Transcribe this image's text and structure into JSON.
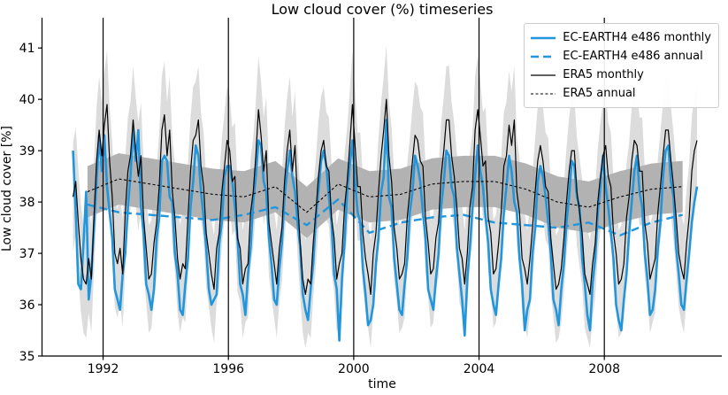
{
  "chart_data": {
    "type": "line",
    "title": "Low cloud cover (%) timeseries",
    "xlabel": "time",
    "ylabel": "Low cloud cover [%]",
    "xlim": [
      1990.05,
      2011.75
    ],
    "ylim": [
      35,
      41.59
    ],
    "xticks": [
      1992,
      1996,
      2000,
      2004,
      2008
    ],
    "yticks": [
      35,
      36,
      37,
      38,
      39,
      40,
      41
    ],
    "vertical_lines": {
      "years": [
        1992,
        1996,
        2000,
        2004,
        2008
      ],
      "color": "#000000",
      "width": 1.2
    },
    "grid": false,
    "plot_background": "#ffffff",
    "years": [
      1991,
      1992,
      1993,
      1994,
      1995,
      1996,
      1997,
      1998,
      1999,
      2000,
      2001,
      2002,
      2003,
      2004,
      2005,
      2006,
      2007,
      2008,
      2009,
      2010
    ],
    "series": [
      {
        "name": "EC-EARTH4 e486 monthly",
        "cadence": "monthly",
        "color": "#2196dc",
        "width": 2.6,
        "dash": "",
        "values_by_year": [
          [
            39.0,
            37.8,
            36.4,
            36.3,
            37.2,
            38.2,
            36.1,
            36.6,
            37.5,
            38.4,
            39.3,
            38.6
          ],
          [
            39.3,
            38.3,
            37.8,
            37.3,
            36.3,
            36.1,
            35.9,
            36.6,
            37.0,
            37.9,
            38.5,
            39.4
          ],
          [
            38.8,
            39.4,
            37.9,
            37.4,
            36.4,
            36.2,
            35.9,
            36.3,
            37.3,
            37.7,
            38.8,
            38.9
          ],
          [
            38.8,
            38.1,
            38.0,
            37.0,
            36.6,
            35.9,
            35.8,
            36.4,
            36.9,
            37.9,
            38.4,
            39.1
          ],
          [
            38.9,
            38.2,
            37.7,
            37.1,
            36.3,
            36.0,
            36.1,
            36.2,
            37.2,
            37.6,
            38.5,
            38.7
          ],
          [
            38.7,
            38.4,
            37.9,
            37.3,
            36.4,
            36.2,
            35.8,
            36.6,
            37.1,
            38.0,
            38.5,
            39.2
          ],
          [
            39.1,
            38.4,
            38.2,
            37.3,
            36.8,
            36.1,
            36.0,
            36.7,
            37.2,
            38.1,
            38.6,
            39.0
          ],
          [
            38.5,
            38.2,
            37.6,
            37.1,
            36.2,
            35.9,
            35.7,
            36.3,
            36.8,
            37.7,
            38.2,
            38.8
          ],
          [
            39.0,
            38.7,
            38.1,
            37.6,
            36.6,
            36.3,
            35.3,
            36.5,
            37.2,
            38.2,
            38.7,
            39.2
          ],
          [
            38.4,
            37.8,
            37.6,
            36.7,
            36.2,
            35.6,
            35.7,
            36.0,
            36.8,
            37.3,
            38.2,
            38.5
          ],
          [
            39.6,
            38.1,
            37.9,
            36.9,
            36.4,
            35.9,
            35.8,
            36.4,
            36.9,
            37.8,
            38.2,
            38.9
          ],
          [
            38.7,
            38.4,
            37.8,
            37.3,
            36.3,
            36.1,
            35.9,
            36.5,
            37.0,
            37.9,
            38.4,
            39.0
          ],
          [
            38.9,
            38.3,
            38.1,
            37.1,
            36.6,
            36.1,
            35.4,
            36.5,
            37.1,
            37.9,
            38.5,
            39.1
          ],
          [
            38.6,
            38.3,
            37.7,
            37.2,
            36.3,
            36.0,
            35.8,
            36.4,
            36.9,
            37.8,
            38.3,
            38.9
          ],
          [
            38.6,
            38.0,
            37.8,
            36.9,
            36.4,
            35.5,
            35.9,
            36.1,
            37.0,
            37.5,
            38.4,
            38.7
          ],
          [
            38.5,
            38.1,
            37.6,
            37.0,
            36.1,
            35.9,
            35.6,
            36.3,
            36.8,
            37.6,
            38.1,
            38.8
          ],
          [
            38.7,
            38.1,
            37.9,
            36.9,
            36.4,
            35.8,
            35.5,
            36.4,
            36.9,
            37.8,
            38.3,
            38.9
          ],
          [
            38.3,
            37.9,
            37.4,
            36.9,
            36.0,
            35.7,
            35.5,
            36.1,
            36.6,
            37.4,
            38.0,
            38.6
          ],
          [
            38.9,
            38.2,
            37.9,
            37.0,
            36.5,
            35.8,
            35.9,
            36.3,
            37.1,
            37.6,
            38.5,
            39.0
          ],
          [
            39.1,
            38.4,
            38.1,
            37.1,
            36.6,
            36.0,
            35.9,
            36.5,
            37.0,
            37.6,
            38.0,
            38.3
          ]
        ]
      },
      {
        "name": "EC-EARTH4 e486 annual",
        "cadence": "annual",
        "color": "#2196dc",
        "width": 2.4,
        "dash": "9 5",
        "values": [
          37.95,
          37.8,
          37.75,
          37.7,
          37.65,
          37.75,
          37.9,
          37.55,
          38.05,
          37.4,
          37.6,
          37.7,
          37.75,
          37.6,
          37.55,
          37.5,
          37.6,
          37.35,
          37.6,
          37.75
        ]
      },
      {
        "name": "ERA5 monthly",
        "cadence": "monthly",
        "color": "#000000",
        "width": 1.2,
        "dash": "",
        "values_by_year": [
          [
            38.1,
            38.4,
            37.6,
            36.9,
            36.5,
            36.4,
            36.9,
            36.5,
            37.7,
            38.8,
            39.4,
            38.9
          ],
          [
            39.5,
            39.9,
            38.8,
            38.1,
            37.0,
            36.8,
            37.1,
            36.6,
            37.8,
            38.6,
            38.9,
            39.6
          ],
          [
            39.0,
            38.5,
            38.9,
            37.7,
            37.1,
            36.5,
            36.6,
            37.2,
            37.6,
            38.3,
            39.4,
            39.7
          ],
          [
            38.9,
            39.4,
            38.2,
            37.7,
            36.9,
            36.5,
            36.8,
            36.7,
            37.7,
            38.6,
            39.2,
            39.3
          ],
          [
            39.6,
            38.7,
            38.3,
            37.4,
            37.0,
            36.6,
            36.3,
            37.1,
            37.4,
            38.2,
            38.7,
            39.2
          ],
          [
            39.0,
            38.4,
            38.5,
            37.3,
            37.1,
            36.4,
            36.7,
            36.8,
            37.8,
            38.2,
            38.9,
            39.8
          ],
          [
            39.3,
            38.6,
            39.0,
            37.6,
            37.2,
            36.8,
            36.4,
            37.1,
            37.5,
            38.4,
            39.0,
            39.4
          ],
          [
            38.6,
            39.1,
            38.0,
            37.2,
            36.5,
            36.2,
            36.5,
            36.4,
            37.2,
            37.8,
            38.5,
            39.0
          ],
          [
            39.2,
            38.7,
            38.6,
            37.7,
            37.3,
            36.5,
            36.8,
            37.0,
            37.9,
            38.4,
            39.1,
            39.9
          ],
          [
            39.1,
            38.3,
            38.3,
            37.4,
            36.9,
            36.6,
            36.2,
            37.0,
            37.4,
            38.2,
            38.9,
            39.4
          ],
          [
            40.0,
            38.9,
            38.4,
            37.5,
            37.1,
            36.5,
            36.6,
            36.8,
            37.7,
            38.2,
            38.8,
            39.3
          ],
          [
            39.2,
            38.8,
            38.7,
            37.7,
            37.2,
            36.6,
            36.7,
            37.3,
            37.6,
            38.5,
            39.0,
            39.6
          ],
          [
            39.6,
            38.9,
            38.5,
            37.9,
            37.1,
            36.9,
            36.4,
            37.0,
            37.9,
            38.3,
            39.4,
            39.8
          ],
          [
            39.3,
            38.7,
            38.8,
            37.7,
            37.4,
            36.6,
            36.7,
            37.2,
            37.8,
            38.7,
            38.9,
            39.5
          ],
          [
            39.1,
            39.6,
            38.2,
            37.8,
            36.9,
            36.7,
            36.4,
            36.9,
            37.5,
            38.2,
            38.8,
            39.1
          ],
          [
            38.8,
            38.3,
            38.2,
            37.3,
            36.8,
            36.3,
            36.4,
            36.7,
            37.3,
            38.0,
            38.6,
            39.0
          ],
          [
            39.0,
            38.2,
            37.8,
            37.4,
            36.6,
            36.4,
            36.2,
            36.8,
            37.2,
            38.0,
            38.5,
            38.9
          ],
          [
            39.1,
            38.5,
            38.3,
            37.4,
            37.0,
            36.4,
            36.5,
            36.8,
            37.7,
            38.1,
            38.8,
            39.2
          ],
          [
            39.1,
            38.6,
            38.6,
            37.6,
            37.2,
            36.5,
            36.7,
            36.9,
            37.8,
            38.3,
            38.9,
            39.4
          ],
          [
            39.4,
            38.8,
            38.3,
            37.7,
            37.0,
            36.7,
            36.5,
            37.2,
            37.7,
            38.6,
            39.0,
            39.2
          ]
        ]
      },
      {
        "name": "ERA5 annual",
        "cadence": "annual",
        "color": "#000000",
        "width": 1.1,
        "dash": "3 2.5",
        "values": [
          38.2,
          38.45,
          38.35,
          38.25,
          38.15,
          38.1,
          38.3,
          37.8,
          38.35,
          38.1,
          38.15,
          38.35,
          38.4,
          38.4,
          38.25,
          38.0,
          37.9,
          38.1,
          38.25,
          38.3
        ]
      }
    ],
    "bands": [
      {
        "name": "monthly-spread",
        "around": "ERA5 monthly",
        "half_width": 1.05,
        "color": "#dcdcdc"
      },
      {
        "name": "annual-spread",
        "around": "ERA5 annual",
        "half_width": 0.5,
        "color": "#b2b2b2"
      }
    ],
    "legend": {
      "position": "upper right",
      "labels": [
        "EC-EARTH4 e486 monthly",
        "EC-EARTH4 e486 annual",
        "ERA5 monthly",
        "ERA5 annual"
      ]
    }
  }
}
